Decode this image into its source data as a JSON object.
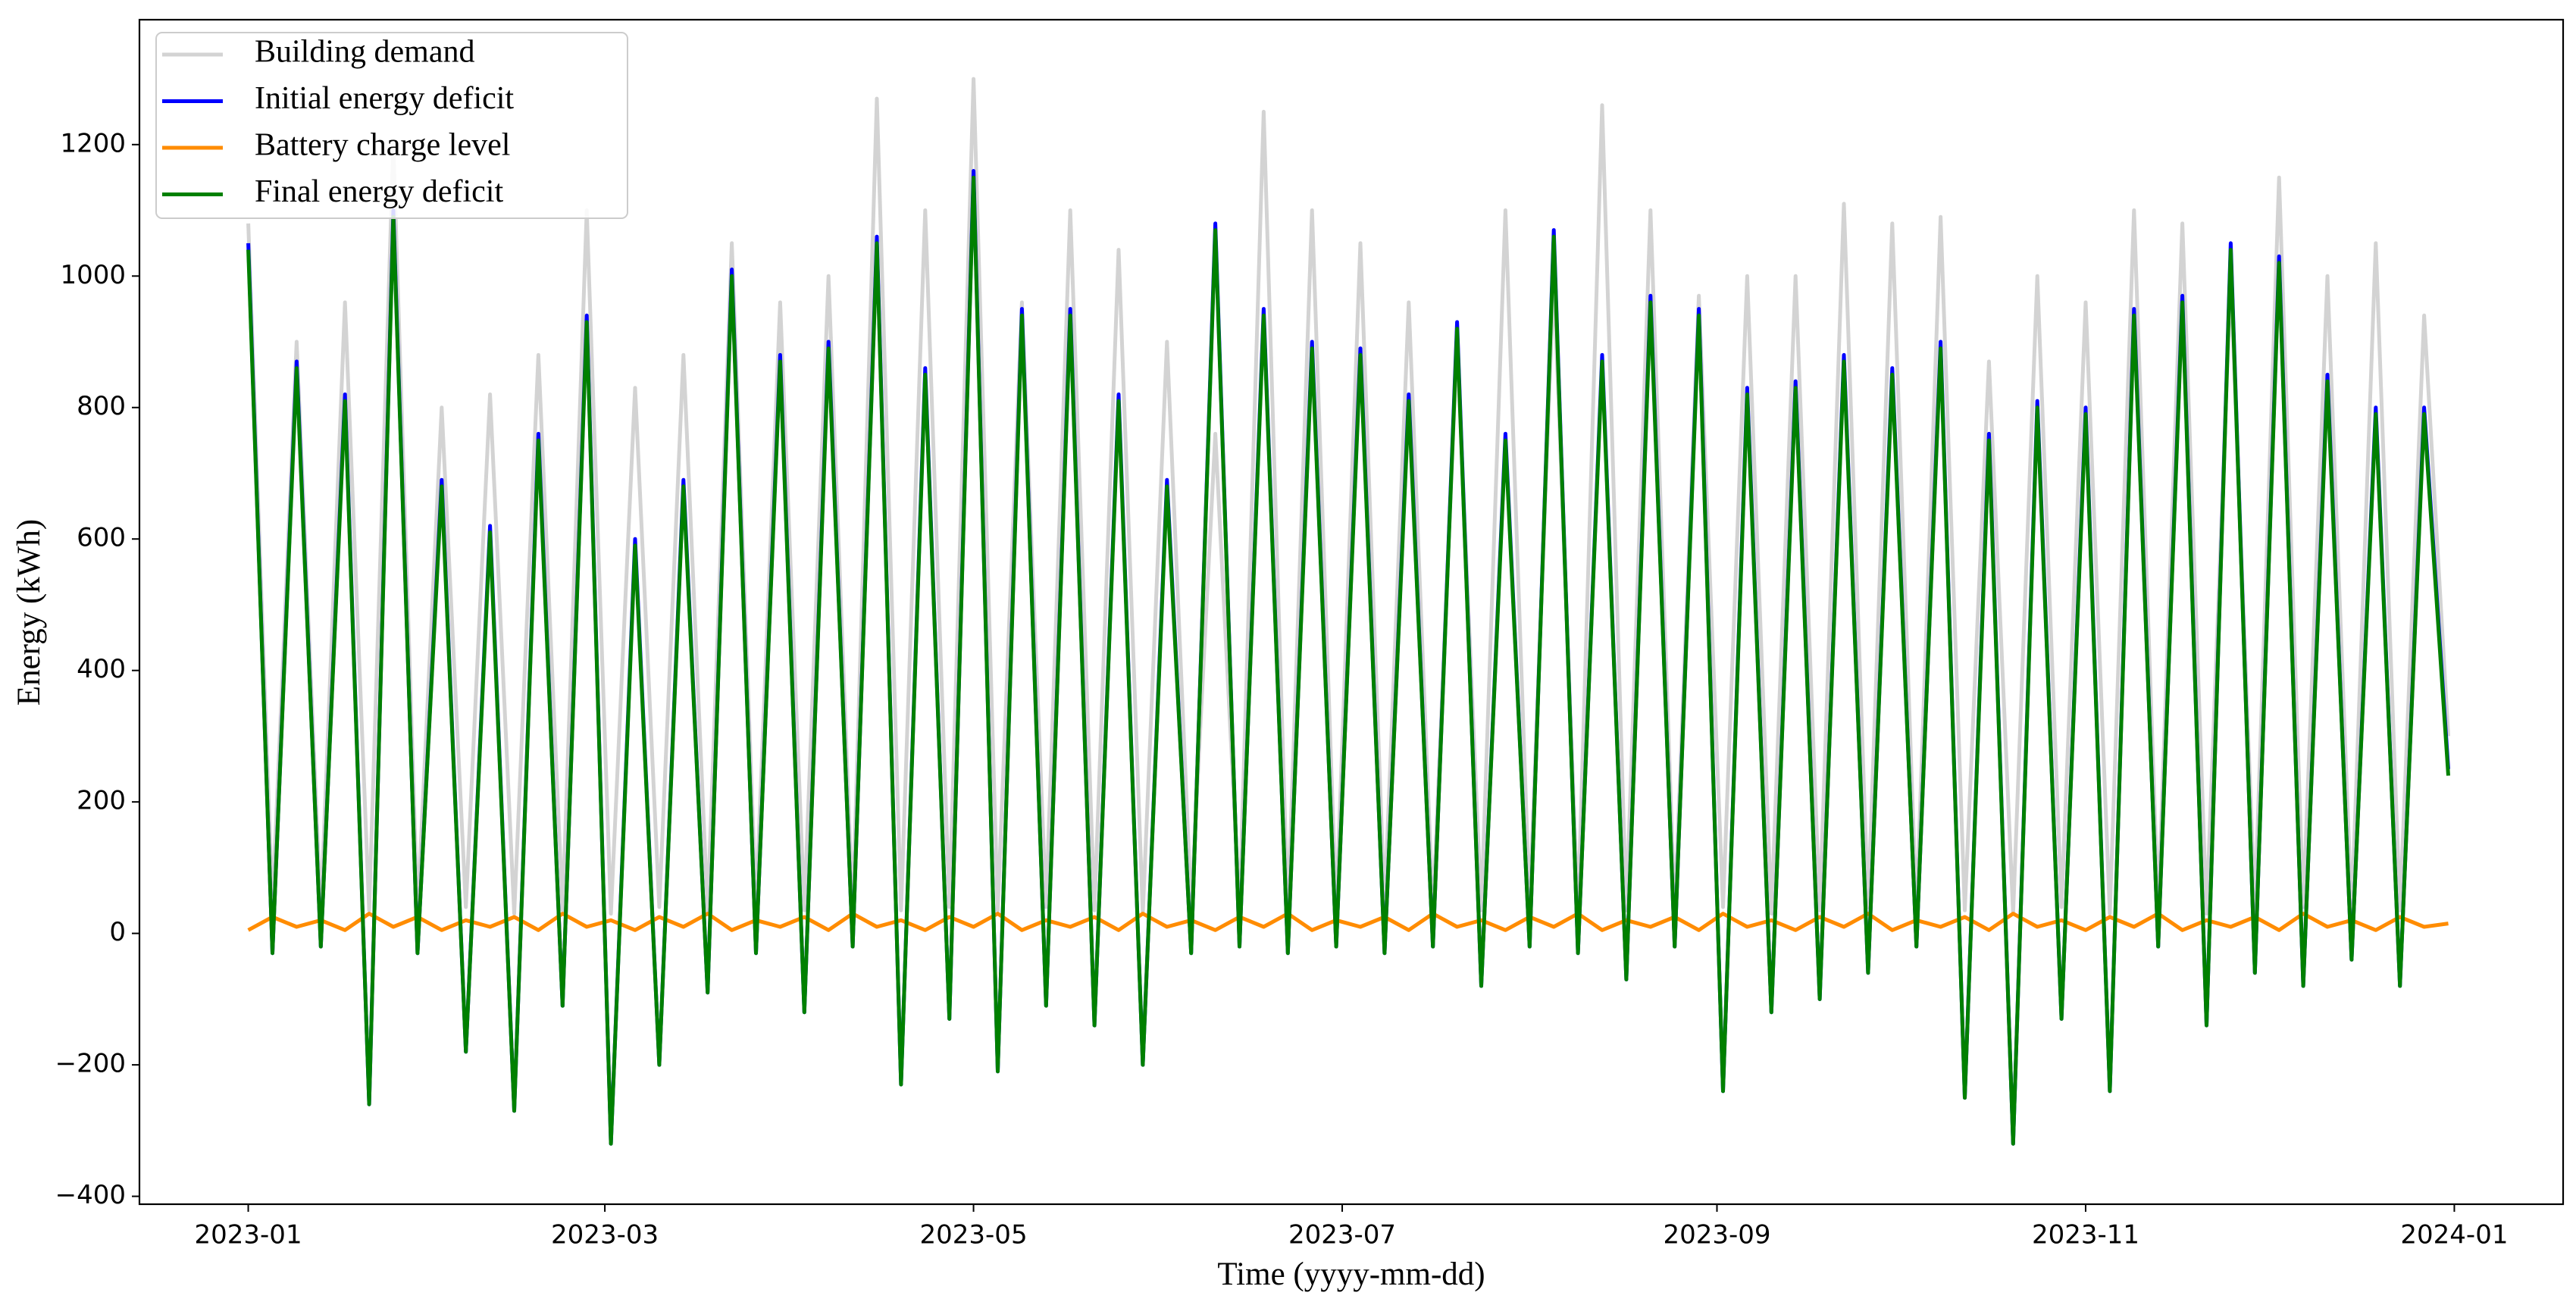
{
  "chart_data": {
    "type": "line",
    "x_label": "Time (yyyy-mm-dd)",
    "y_label": "Energy (kWh)",
    "x": [
      "2023-01-01",
      "2023-01-05",
      "2023-01-09",
      "2023-01-13",
      "2023-01-17",
      "2023-01-21",
      "2023-01-25",
      "2023-01-29",
      "2023-02-02",
      "2023-02-06",
      "2023-02-10",
      "2023-02-14",
      "2023-02-18",
      "2023-02-22",
      "2023-02-26",
      "2023-03-02",
      "2023-03-06",
      "2023-03-10",
      "2023-03-14",
      "2023-03-18",
      "2023-03-22",
      "2023-03-26",
      "2023-03-30",
      "2023-04-03",
      "2023-04-07",
      "2023-04-11",
      "2023-04-15",
      "2023-04-19",
      "2023-04-23",
      "2023-04-27",
      "2023-05-01",
      "2023-05-05",
      "2023-05-09",
      "2023-05-13",
      "2023-05-17",
      "2023-05-21",
      "2023-05-25",
      "2023-05-29",
      "2023-06-02",
      "2023-06-06",
      "2023-06-10",
      "2023-06-14",
      "2023-06-18",
      "2023-06-22",
      "2023-06-26",
      "2023-06-30",
      "2023-07-04",
      "2023-07-08",
      "2023-07-12",
      "2023-07-16",
      "2023-07-20",
      "2023-07-24",
      "2023-07-28",
      "2023-08-01",
      "2023-08-05",
      "2023-08-09",
      "2023-08-13",
      "2023-08-17",
      "2023-08-21",
      "2023-08-25",
      "2023-08-29",
      "2023-09-02",
      "2023-09-06",
      "2023-09-10",
      "2023-09-14",
      "2023-09-18",
      "2023-09-22",
      "2023-09-26",
      "2023-09-30",
      "2023-10-04",
      "2023-10-08",
      "2023-10-12",
      "2023-10-16",
      "2023-10-20",
      "2023-10-24",
      "2023-10-28",
      "2023-11-01",
      "2023-11-05",
      "2023-11-09",
      "2023-11-13",
      "2023-11-17",
      "2023-11-21",
      "2023-11-25",
      "2023-11-29",
      "2023-12-03",
      "2023-12-07",
      "2023-12-11",
      "2023-12-15",
      "2023-12-19",
      "2023-12-23",
      "2023-12-27",
      "2023-12-31"
    ],
    "series": [
      {
        "name": "Building demand",
        "color": "#d3d3d3",
        "values": [
          1080,
          40,
          900,
          30,
          960,
          35,
          1200,
          30,
          800,
          40,
          820,
          30,
          880,
          35,
          1100,
          30,
          830,
          40,
          880,
          35,
          1050,
          40,
          960,
          35,
          1000,
          30,
          1270,
          35,
          1100,
          40,
          1300,
          35,
          960,
          40,
          1100,
          35,
          1040,
          30,
          900,
          40,
          760,
          35,
          1250,
          30,
          1100,
          35,
          1050,
          40,
          960,
          30,
          900,
          35,
          1100,
          40,
          1000,
          30,
          1260,
          35,
          1100,
          30,
          970,
          40,
          1000,
          30,
          1000,
          35,
          1110,
          40,
          1080,
          30,
          1090,
          35,
          870,
          30,
          1000,
          40,
          960,
          30,
          1100,
          35,
          1080,
          30,
          1000,
          35,
          1150,
          40,
          1000,
          30,
          1050,
          35,
          940,
          300
        ]
      },
      {
        "name": "Initial energy deficit",
        "color": "#0000ff",
        "values": [
          1050,
          -30,
          870,
          -20,
          820,
          -260,
          1100,
          -30,
          690,
          -180,
          620,
          -270,
          760,
          -110,
          940,
          -320,
          600,
          -200,
          690,
          -90,
          1010,
          -30,
          880,
          -120,
          900,
          -20,
          1060,
          -230,
          860,
          -130,
          1160,
          -210,
          950,
          -110,
          950,
          -140,
          820,
          -200,
          690,
          -30,
          1080,
          -20,
          950,
          -30,
          900,
          -20,
          890,
          -30,
          820,
          -20,
          930,
          -80,
          760,
          -20,
          1070,
          -30,
          880,
          -70,
          970,
          -20,
          950,
          -240,
          830,
          -120,
          840,
          -100,
          880,
          -60,
          860,
          -20,
          900,
          -250,
          760,
          -320,
          810,
          -130,
          800,
          -240,
          950,
          -20,
          970,
          -140,
          1050,
          -60,
          1030,
          -80,
          850,
          -40,
          800,
          -80,
          800,
          250
        ]
      },
      {
        "name": "Battery charge level",
        "color": "#ff8c00",
        "values": [
          5,
          25,
          10,
          20,
          5,
          30,
          10,
          25,
          5,
          20,
          10,
          25,
          5,
          30,
          10,
          20,
          5,
          25,
          10,
          30,
          5,
          20,
          10,
          25,
          5,
          30,
          10,
          20,
          5,
          25,
          10,
          30,
          5,
          20,
          10,
          25,
          5,
          30,
          10,
          20,
          5,
          25,
          10,
          30,
          5,
          20,
          10,
          25,
          5,
          30,
          10,
          20,
          5,
          25,
          10,
          30,
          5,
          20,
          10,
          25,
          5,
          30,
          10,
          20,
          5,
          25,
          10,
          30,
          5,
          20,
          10,
          25,
          5,
          30,
          10,
          20,
          5,
          25,
          10,
          30,
          5,
          20,
          10,
          25,
          5,
          30,
          10,
          20,
          5,
          25,
          10,
          15
        ]
      },
      {
        "name": "Final energy deficit",
        "color": "#008000",
        "values": [
          1040,
          -30,
          860,
          -20,
          810,
          -260,
          1090,
          -30,
          680,
          -180,
          610,
          -270,
          750,
          -110,
          930,
          -320,
          590,
          -200,
          680,
          -90,
          1000,
          -30,
          870,
          -120,
          890,
          -20,
          1050,
          -230,
          850,
          -130,
          1150,
          -210,
          940,
          -110,
          940,
          -140,
          810,
          -200,
          680,
          -30,
          1070,
          -20,
          940,
          -30,
          890,
          -20,
          880,
          -30,
          810,
          -20,
          920,
          -80,
          750,
          -20,
          1060,
          -30,
          870,
          -70,
          960,
          -20,
          940,
          -240,
          820,
          -120,
          830,
          -100,
          870,
          -60,
          850,
          -20,
          890,
          -250,
          750,
          -320,
          800,
          -130,
          790,
          -240,
          940,
          -20,
          960,
          -140,
          1040,
          -60,
          1020,
          -80,
          840,
          -40,
          790,
          -80,
          790,
          240
        ]
      }
    ],
    "xlim": [
      "2022-12-14",
      "2024-01-19"
    ],
    "xticks": [
      {
        "value": "2023-01-01",
        "label": "2023-01"
      },
      {
        "value": "2023-03-01",
        "label": "2023-03"
      },
      {
        "value": "2023-05-01",
        "label": "2023-05"
      },
      {
        "value": "2023-07-01",
        "label": "2023-07"
      },
      {
        "value": "2023-09-01",
        "label": "2023-09"
      },
      {
        "value": "2023-11-01",
        "label": "2023-11"
      },
      {
        "value": "2024-01-01",
        "label": "2024-01"
      }
    ],
    "ylim": [
      -412,
      1390
    ],
    "yticks": [
      {
        "value": -400,
        "label": "−400"
      },
      {
        "value": -200,
        "label": "−200"
      },
      0,
      200,
      400,
      600,
      800,
      1000,
      1200
    ],
    "grid": false,
    "legend": "upper left"
  }
}
